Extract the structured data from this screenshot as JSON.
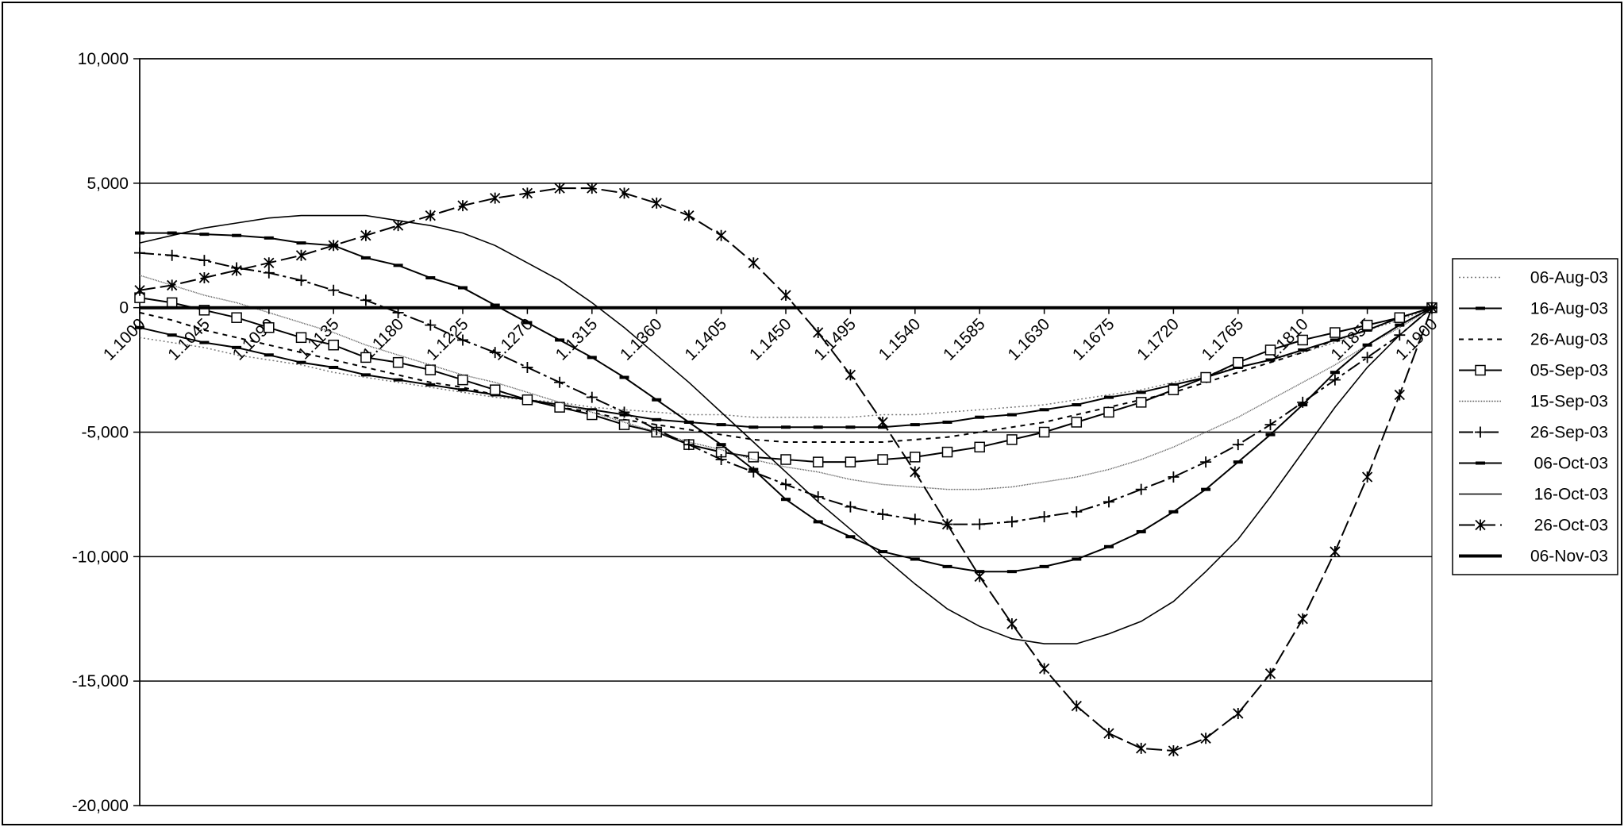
{
  "chart_data": {
    "type": "line",
    "categories": [
      "1.1000",
      null,
      "1.1045",
      null,
      "1.1090",
      null,
      "1.1135",
      null,
      "1.1180",
      null,
      "1.1225",
      null,
      "1.1270",
      null,
      "1.1315",
      null,
      "1.1360",
      null,
      "1.1405",
      null,
      "1.1450",
      null,
      "1.1495",
      null,
      "1.1540",
      null,
      "1.1585",
      null,
      "1.1630",
      null,
      "1.1675",
      null,
      "1.1720",
      null,
      "1.1765",
      null,
      "1.1810",
      null,
      "1.1855",
      null,
      "1.1900"
    ],
    "ylim": [
      -20000,
      10000
    ],
    "yticks": [
      {
        "value": -20000,
        "label": "-20,000"
      },
      {
        "value": -15000,
        "label": "-15,000"
      },
      {
        "value": -10000,
        "label": "-10,000"
      },
      {
        "value": -5000,
        "label": "-5,000"
      },
      0,
      {
        "value": 5000,
        "label": "5,000"
      },
      {
        "value": 10000,
        "label": "10,000"
      }
    ],
    "grid": true,
    "legend": "right",
    "series": [
      {
        "name": "06-Aug-03",
        "color": "#777777",
        "style": "dotted",
        "marker": "none",
        "values": [
          -1200,
          -1400,
          -1600,
          -1900,
          -2100,
          -2300,
          -2600,
          -2800,
          -3000,
          -3200,
          -3400,
          -3600,
          -3700,
          -3800,
          -4000,
          -4100,
          -4200,
          -4300,
          -4300,
          -4400,
          -4400,
          -4400,
          -4400,
          -4300,
          -4300,
          -4200,
          -4100,
          -4000,
          -3900,
          -3700,
          -3500,
          -3300,
          -3000,
          -2700,
          -2400,
          -2100,
          -1800,
          -1400,
          -900,
          -500,
          0
        ]
      },
      {
        "name": "16-Aug-03",
        "color": "#000000",
        "style": "solid",
        "marker": "dash",
        "values": [
          -800,
          -1100,
          -1400,
          -1600,
          -1900,
          -2200,
          -2400,
          -2700,
          -2900,
          -3100,
          -3300,
          -3500,
          -3700,
          -3900,
          -4100,
          -4300,
          -4500,
          -4600,
          -4700,
          -4800,
          -4800,
          -4800,
          -4800,
          -4800,
          -4700,
          -4600,
          -4400,
          -4300,
          -4100,
          -3900,
          -3600,
          -3400,
          -3100,
          -2800,
          -2400,
          -2100,
          -1700,
          -1300,
          -900,
          -400,
          0
        ]
      },
      {
        "name": "26-Aug-03",
        "color": "#000000",
        "style": "dashed",
        "marker": "none",
        "values": [
          -200,
          -500,
          -900,
          -1200,
          -1500,
          -1800,
          -2100,
          -2400,
          -2700,
          -3000,
          -3200,
          -3500,
          -3700,
          -4000,
          -4200,
          -4500,
          -4700,
          -4900,
          -5100,
          -5300,
          -5400,
          -5400,
          -5400,
          -5400,
          -5300,
          -5200,
          -5000,
          -4800,
          -4600,
          -4300,
          -4000,
          -3700,
          -3400,
          -3000,
          -2600,
          -2200,
          -1800,
          -1300,
          -900,
          -400,
          0
        ]
      },
      {
        "name": "05-Sep-03",
        "color": "#000000",
        "style": "solid",
        "marker": "square",
        "values": [
          400,
          200,
          -100,
          -400,
          -800,
          -1200,
          -1500,
          -2000,
          -2200,
          -2500,
          -2900,
          -3300,
          -3700,
          -4000,
          -4300,
          -4700,
          -5000,
          -5500,
          -5800,
          -6000,
          -6100,
          -6200,
          -6200,
          -6100,
          -6000,
          -5800,
          -5600,
          -5300,
          -5000,
          -4600,
          -4200,
          -3800,
          -3300,
          -2800,
          -2200,
          -1700,
          -1300,
          -1000,
          -700,
          -400,
          0
        ]
      },
      {
        "name": "15-Sep-03",
        "color": "#555555",
        "style": "fine",
        "marker": "none",
        "values": [
          1300,
          900,
          500,
          200,
          -200,
          -600,
          -1000,
          -1500,
          -1900,
          -2300,
          -2700,
          -3000,
          -3400,
          -3800,
          -4200,
          -4600,
          -5000,
          -5400,
          -5700,
          -6100,
          -6400,
          -6600,
          -6900,
          -7100,
          -7200,
          -7300,
          -7300,
          -7200,
          -7000,
          -6800,
          -6500,
          -6100,
          -5600,
          -5000,
          -4400,
          -3700,
          -3000,
          -2300,
          -1500,
          -800,
          0
        ]
      },
      {
        "name": "26-Sep-03",
        "color": "#000000",
        "style": "dashdot",
        "marker": "plus",
        "values": [
          2200,
          2100,
          1900,
          1600,
          1400,
          1100,
          700,
          300,
          -200,
          -700,
          -1300,
          -1800,
          -2400,
          -3000,
          -3600,
          -4200,
          -4900,
          -5500,
          -6100,
          -6600,
          -7100,
          -7600,
          -8000,
          -8300,
          -8500,
          -8700,
          -8700,
          -8600,
          -8400,
          -8200,
          -7800,
          -7300,
          -6800,
          -6200,
          -5500,
          -4700,
          -3800,
          -2900,
          -2000,
          -1100,
          0
        ]
      },
      {
        "name": "06-Oct-03",
        "color": "#000000",
        "style": "solid",
        "marker": "dash",
        "values": [
          3000,
          3000,
          2950,
          2900,
          2800,
          2600,
          2500,
          2000,
          1700,
          1200,
          800,
          100,
          -600,
          -1300,
          -2000,
          -2800,
          -3700,
          -4600,
          -5500,
          -6500,
          -7700,
          -8600,
          -9200,
          -9800,
          -10100,
          -10400,
          -10600,
          -10600,
          -10400,
          -10100,
          -9600,
          -9000,
          -8200,
          -7300,
          -6200,
          -5100,
          -3900,
          -2600,
          -1500,
          -700,
          0
        ]
      },
      {
        "name": "16-Oct-03",
        "color": "#000000",
        "style": "thin",
        "marker": "none",
        "values": [
          2600,
          2900,
          3200,
          3400,
          3600,
          3700,
          3700,
          3700,
          3500,
          3300,
          3000,
          2500,
          1800,
          1100,
          200,
          -800,
          -1900,
          -3000,
          -4200,
          -5400,
          -6600,
          -7800,
          -8900,
          -10000,
          -11100,
          -12100,
          -12800,
          -13300,
          -13500,
          -13500,
          -13100,
          -12600,
          -11800,
          -10600,
          -9300,
          -7600,
          -5800,
          -4000,
          -2400,
          -1100,
          0
        ]
      },
      {
        "name": "26-Oct-03",
        "color": "#000000",
        "style": "longdash",
        "marker": "star",
        "values": [
          700,
          900,
          1200,
          1500,
          1800,
          2100,
          2500,
          2900,
          3300,
          3700,
          4100,
          4400,
          4600,
          4800,
          4800,
          4600,
          4200,
          3700,
          2900,
          1800,
          500,
          -1000,
          -2700,
          -4600,
          -6600,
          -8700,
          -10800,
          -12700,
          -14500,
          -16000,
          -17100,
          -17700,
          -17800,
          -17300,
          -16300,
          -14700,
          -12500,
          -9800,
          -6800,
          -3500,
          0
        ]
      },
      {
        "name": "06-Nov-03",
        "color": "#000000",
        "style": "thick",
        "marker": "none",
        "values": [
          0,
          0,
          0,
          0,
          0,
          0,
          0,
          0,
          0,
          0,
          0,
          0,
          0,
          0,
          0,
          0,
          0,
          0,
          0,
          0,
          0,
          0,
          0,
          0,
          0,
          0,
          0,
          0,
          0,
          0,
          0,
          0,
          0,
          0,
          0,
          0,
          0,
          0,
          0,
          0,
          0
        ]
      }
    ]
  }
}
